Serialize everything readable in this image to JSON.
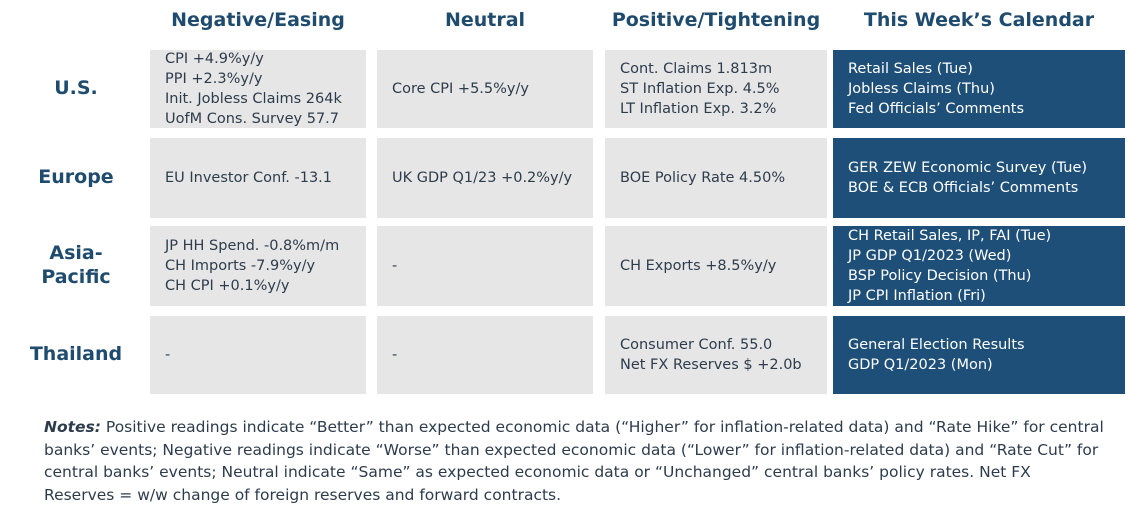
{
  "headers": {
    "negative": "Negative/Easing",
    "neutral": "Neutral",
    "positive": "Positive/Tightening",
    "calendar": "This Week’s Calendar"
  },
  "rows": [
    {
      "label": [
        "U.S."
      ],
      "negative": [
        "CPI +4.9%y/y",
        "PPI +2.3%y/y",
        "Init. Jobless Claims 264k",
        "UofM Cons. Survey 57.7"
      ],
      "neutral": [
        "Core CPI +5.5%y/y"
      ],
      "positive": [
        "Cont. Claims 1.813m",
        "ST Inflation Exp. 4.5%",
        "LT Inflation Exp. 3.2%"
      ],
      "calendar": [
        "Retail Sales (Tue)",
        "Jobless Claims (Thu)",
        "Fed Officials’ Comments"
      ]
    },
    {
      "label": [
        "Europe"
      ],
      "negative": [
        "EU Investor Conf. -13.1"
      ],
      "neutral": [
        "UK GDP Q1/23 +0.2%y/y"
      ],
      "positive": [
        "BOE Policy Rate 4.50%"
      ],
      "calendar": [
        "GER ZEW Economic Survey (Tue)",
        "BOE & ECB Officials’ Comments"
      ]
    },
    {
      "label": [
        "Asia-",
        "Pacific"
      ],
      "negative": [
        "JP HH Spend. -0.8%m/m",
        "CH Imports -7.9%y/y",
        "CH CPI +0.1%y/y"
      ],
      "neutral": [
        "-"
      ],
      "positive": [
        "CH Exports +8.5%y/y"
      ],
      "calendar": [
        "CH Retail Sales, IP, FAI (Tue)",
        "JP GDP Q1/2023 (Wed)",
        "BSP Policy Decision (Thu)",
        "JP CPI Inflation (Fri)"
      ]
    },
    {
      "label": [
        "Thailand"
      ],
      "negative": [
        "-"
      ],
      "neutral": [
        "-"
      ],
      "positive": [
        "Consumer Conf. 55.0",
        "Net FX Reserves $ +2.0b"
      ],
      "calendar": [
        "General Election Results",
        "GDP Q1/2023 (Mon)"
      ]
    }
  ],
  "notes": {
    "label": "Notes:",
    "text": " Positive readings indicate “Better” than expected economic data (“Higher” for inflation-related data) and “Rate Hike” for central banks’ events; Negative readings indicate “Worse” than expected economic data (“Lower” for inflation-related data) and “Rate Cut” for central banks’ events; Neutral indicate “Same” as expected economic data or “Unchanged” central banks’ policy rates. Net FX Reserves = w/w change of foreign reserves and forward contracts."
  },
  "colors": {
    "heading": "#1f4b6e",
    "cell_background": "#e6e6e6",
    "calendar_background": "#1e4f78",
    "calendar_text": "#ffffff"
  }
}
